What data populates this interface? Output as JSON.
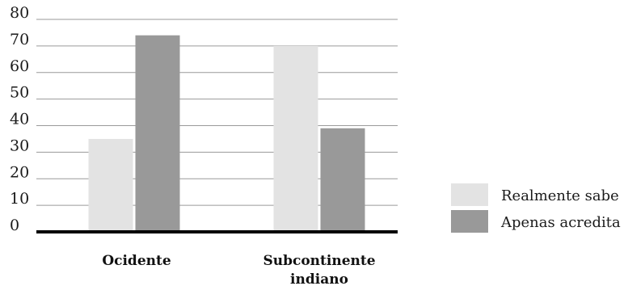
{
  "chart_data": {
    "type": "bar",
    "title": "",
    "xlabel": "",
    "ylabel": "",
    "categories": [
      [
        "Ocidente"
      ],
      [
        "Subcontinente",
        "indiano"
      ]
    ],
    "series": [
      {
        "name": "Realmente sabe",
        "values": [
          35,
          70
        ],
        "color": "#e3e3e3"
      },
      {
        "name": "Apenas acredita",
        "values": [
          74,
          39
        ],
        "color": "#999999"
      }
    ],
    "yticks": [
      0,
      10,
      20,
      30,
      40,
      50,
      60,
      70,
      80
    ],
    "ylim": [
      0,
      82
    ],
    "grid": true,
    "legend": "right"
  }
}
